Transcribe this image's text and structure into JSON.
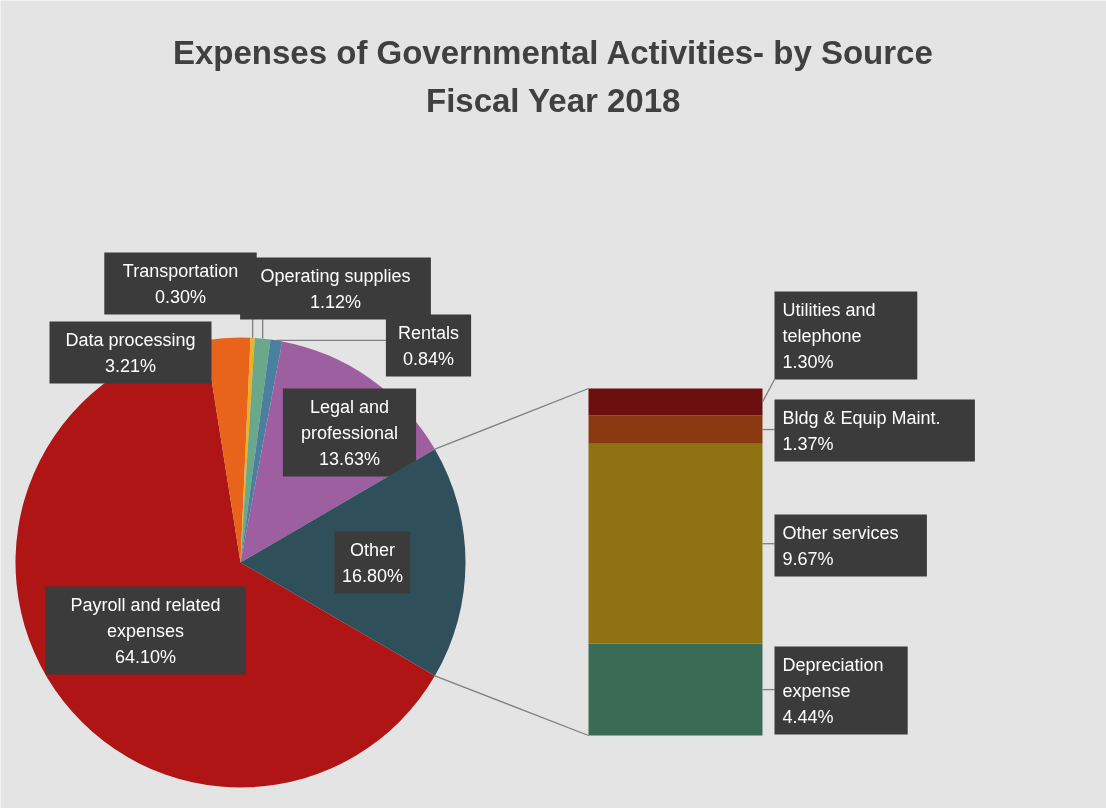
{
  "chart_data": [
    {
      "type": "pie",
      "title": "Expenses of Governmental Activities- by Source",
      "subtitle": "Fiscal Year 2018",
      "categories": [
        "Payroll and related expenses",
        "Data processing",
        "Transportation",
        "Operating supplies",
        "Rentals",
        "Legal and professional",
        "Other"
      ],
      "values": [
        64.1,
        3.21,
        0.3,
        1.12,
        0.84,
        13.63,
        16.8
      ],
      "value_labels": [
        "64.10%",
        "3.21%",
        "0.30%",
        "1.12%",
        "0.84%",
        "13.63%",
        "16.80%"
      ],
      "colors": [
        "#b01515",
        "#e8641b",
        "#f0b020",
        "#6aa88a",
        "#4a7fa0",
        "#9e5fa0",
        "#2f4f5a"
      ]
    },
    {
      "type": "bar",
      "stacked": true,
      "categories": [
        null
      ],
      "series": [
        {
          "name": "Depreciation expense",
          "color": "#3a6b55",
          "values": [
            4.44
          ],
          "value_labels": [
            "4.44%"
          ]
        },
        {
          "name": "Other services",
          "color": "#8f7313",
          "values": [
            9.67
          ],
          "value_labels": [
            "9.67%"
          ]
        },
        {
          "name": "Bldg & Equip Maint.",
          "color": "#8a3a10",
          "values": [
            1.37
          ],
          "value_labels": [
            "1.37%"
          ]
        },
        {
          "name": "Utilities and telephone",
          "color": "#6b0f0f",
          "values": [
            1.3
          ],
          "value_labels": [
            "1.30%"
          ]
        }
      ]
    }
  ]
}
